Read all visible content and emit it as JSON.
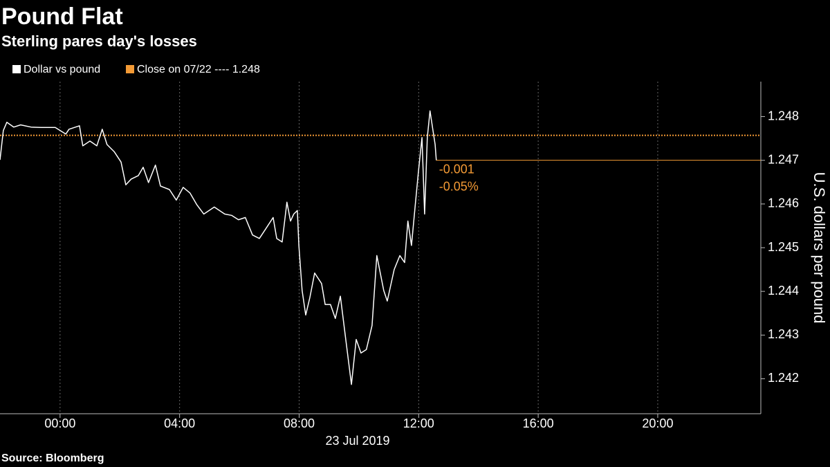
{
  "chart_data": {
    "type": "line",
    "title": "Pound Flat",
    "subtitle": "Sterling pares day's losses",
    "y_label": "U.S. dollars per pound",
    "x_label": "23 Jul 2019",
    "source": "Source: Bloomberg",
    "x": [
      -2.01,
      -1.9,
      -1.78,
      -1.55,
      -1.32,
      -0.97,
      -0.63,
      -0.16,
      0.19,
      0.3,
      0.65,
      0.76,
      1.0,
      1.23,
      1.41,
      1.57,
      1.81,
      2.04,
      2.2,
      2.38,
      2.62,
      2.78,
      2.96,
      3.19,
      3.36,
      3.66,
      3.89,
      4.12,
      4.35,
      4.58,
      4.81,
      5.16,
      5.51,
      5.74,
      5.97,
      6.2,
      6.44,
      6.67,
      6.9,
      7.13,
      7.25,
      7.43,
      7.59,
      7.71,
      7.82,
      7.94,
      7.99,
      8.1,
      8.22,
      8.36,
      8.52,
      8.75,
      8.87,
      9.05,
      9.21,
      9.38,
      9.56,
      9.75,
      9.91,
      10.07,
      10.25,
      10.44,
      10.6,
      10.83,
      10.95,
      11.18,
      11.37,
      11.53,
      11.64,
      11.76,
      11.88,
      11.99,
      12.11,
      12.2,
      12.29,
      12.38,
      12.48,
      12.55,
      12.59
    ],
    "series": [
      {
        "name": "Dollar vs pound",
        "color": "#ffffff",
        "values": [
          1.24701,
          1.24768,
          1.24787,
          1.24776,
          1.24781,
          1.24776,
          1.24775,
          1.24775,
          1.2476,
          1.24771,
          1.24779,
          1.24733,
          1.24744,
          1.24733,
          1.24771,
          1.24736,
          1.2472,
          1.24696,
          1.24644,
          1.24657,
          1.24665,
          1.24684,
          1.24649,
          1.24689,
          1.24641,
          1.24633,
          1.24609,
          1.24638,
          1.24625,
          1.24598,
          1.24577,
          1.24593,
          1.24577,
          1.24574,
          1.24564,
          1.24569,
          1.24529,
          1.24521,
          1.24545,
          1.24569,
          1.24521,
          1.24513,
          1.24604,
          1.24561,
          1.24577,
          1.24585,
          1.24505,
          1.24402,
          1.24346,
          1.24386,
          1.24442,
          1.24418,
          1.2437,
          1.2437,
          1.24338,
          1.24389,
          1.2429,
          1.24187,
          1.2429,
          1.24259,
          1.24267,
          1.24322,
          1.24482,
          1.24402,
          1.24378,
          1.2445,
          1.24482,
          1.24466,
          1.24561,
          1.24505,
          1.24593,
          1.24673,
          1.24752,
          1.24577,
          1.24752,
          1.24813,
          1.24768,
          1.24736,
          1.247
        ]
      }
    ],
    "reference_line": {
      "label": "Close on 07/22 ---- 1.248",
      "value": 1.24757,
      "color": "#f39a35"
    },
    "annotations": [
      "-0.001",
      "-0.05%"
    ],
    "xlim": [
      -2.01,
      23.45
    ],
    "ylim": [
      1.2412,
      1.2488
    ],
    "xticks": [
      {
        "value": 0,
        "label": "00:00"
      },
      {
        "value": 4,
        "label": "04:00"
      },
      {
        "value": 8,
        "label": "08:00"
      },
      {
        "value": 12,
        "label": "12:00"
      },
      {
        "value": 16,
        "label": "16:00"
      },
      {
        "value": 20,
        "label": "20:00"
      }
    ],
    "yticks": [
      1.242,
      1.243,
      1.244,
      1.245,
      1.246,
      1.247,
      1.248
    ],
    "grid": true
  }
}
